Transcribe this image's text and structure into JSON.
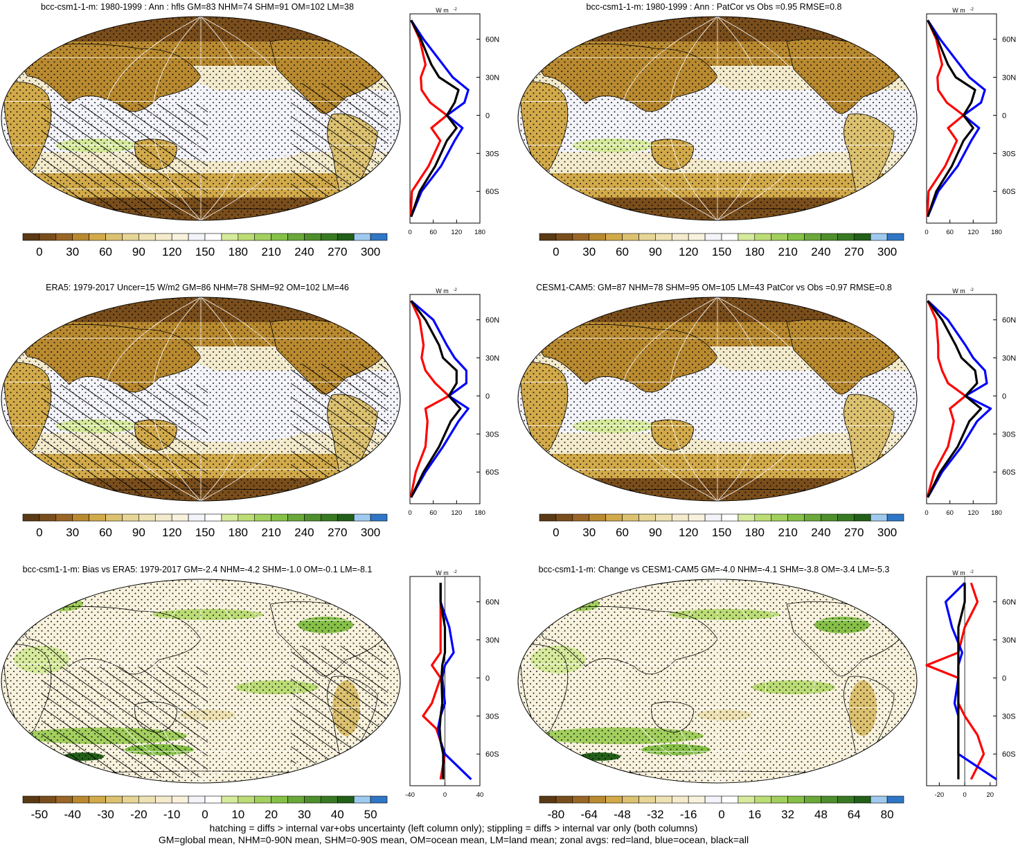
{
  "panels": [
    {
      "title": "bcc-csm1-1-m: 1980-1999 : Ann : hfls GM=83 NHM=74 SHM=91 OM=102 LM=38",
      "kind": "abs",
      "hatch": true,
      "colorbar": {
        "ticks": [
          "0",
          "30",
          "60",
          "90",
          "120",
          "150",
          "180",
          "210",
          "240",
          "270",
          "300"
        ]
      },
      "zonal": {
        "unit_label": "W m",
        "unit_exp": "-2",
        "xticks": [
          "0",
          "60",
          "120",
          "180"
        ],
        "xlim": [
          0,
          180
        ],
        "yticks": [
          "60N",
          "30N",
          "0",
          "30S",
          "60S"
        ]
      }
    },
    {
      "title": "bcc-csm1-1-m: 1980-1999 : Ann : PatCor vs Obs =0.95 RMSE=0.8",
      "kind": "abs",
      "hatch": false,
      "colorbar": {
        "ticks": [
          "0",
          "30",
          "60",
          "90",
          "120",
          "150",
          "180",
          "210",
          "240",
          "270",
          "300"
        ]
      },
      "zonal": {
        "unit_label": "W m",
        "unit_exp": "-2",
        "xticks": [
          "0",
          "60",
          "120",
          "180"
        ],
        "xlim": [
          0,
          180
        ],
        "yticks": [
          "60N",
          "30N",
          "0",
          "30S",
          "60S"
        ]
      }
    },
    {
      "title": "ERA5: 1979-2017 Uncer=15 W/m2 GM=86 NHM=78 SHM=92 OM=102 LM=46",
      "kind": "abs",
      "hatch": true,
      "colorbar": {
        "ticks": [
          "0",
          "30",
          "60",
          "90",
          "120",
          "150",
          "180",
          "210",
          "240",
          "270",
          "300"
        ]
      },
      "zonal": {
        "unit_label": "W m",
        "unit_exp": "-2",
        "xticks": [
          "0",
          "60",
          "120",
          "180"
        ],
        "xlim": [
          0,
          180
        ],
        "yticks": [
          "60N",
          "30N",
          "0",
          "30S",
          "60S"
        ]
      }
    },
    {
      "title": "CESM1-CAM5: GM=87 NHM=78 SHM=95 OM=105 LM=43 PatCor vs Obs =0.97 RMSE=0.8",
      "kind": "abs",
      "hatch": false,
      "colorbar": {
        "ticks": [
          "0",
          "30",
          "60",
          "90",
          "120",
          "150",
          "180",
          "210",
          "240",
          "270",
          "300"
        ]
      },
      "zonal": {
        "unit_label": "W m",
        "unit_exp": "-2",
        "xticks": [
          "0",
          "60",
          "120",
          "180"
        ],
        "xlim": [
          0,
          180
        ],
        "yticks": [
          "60N",
          "30N",
          "0",
          "30S",
          "60S"
        ]
      }
    },
    {
      "title": "bcc-csm1-1-m: Bias vs ERA5: 1979-2017 GM=-2.4 NHM=-4.2 SHM=-1.0 OM=-0.1 LM=-8.1",
      "kind": "diff",
      "hatch": true,
      "colorbar": {
        "ticks": [
          "-50",
          "-40",
          "-30",
          "-20",
          "-10",
          "0",
          "10",
          "20",
          "30",
          "40",
          "50"
        ]
      },
      "zonal": {
        "unit_label": "W m",
        "unit_exp": "-2",
        "xticks": [
          "-40",
          "0",
          "40"
        ],
        "xlim": [
          -40,
          40
        ],
        "yticks": [
          "60N",
          "30N",
          "0",
          "30S",
          "60S"
        ]
      }
    },
    {
      "title": "bcc-csm1-1-m: Change vs CESM1-CAM5 GM=-4.0 NHM=-4.1 SHM=-3.8 OM=-3.4 LM=-5.3",
      "kind": "diff",
      "hatch": false,
      "colorbar": {
        "ticks": [
          "-80",
          "-64",
          "-48",
          "-32",
          "-16",
          "0",
          "16",
          "32",
          "48",
          "64",
          "80"
        ]
      },
      "zonal": {
        "unit_label": "W m",
        "unit_exp": "-2",
        "xticks": [
          "-20",
          "0",
          "20"
        ],
        "xlim": [
          -30,
          25
        ],
        "yticks": [
          "60N",
          "30N",
          "0",
          "30S",
          "60S"
        ]
      }
    }
  ],
  "colors": {
    "abs_palette": [
      "#5a3a14",
      "#7a4e1c",
      "#9a6626",
      "#b98a30",
      "#d2aa4a",
      "#dcc170",
      "#e6d595",
      "#eee2b4",
      "#f4ebcd",
      "#f8f2dd",
      "#f3f3fa",
      "#ffffff",
      "#d6ea9c",
      "#bcdc76",
      "#a2cf5e",
      "#86c048",
      "#6aa83a",
      "#4e8e2c",
      "#387a22",
      "#235f18",
      "#9fcaf0",
      "#2f76c6"
    ],
    "diff_palette": [
      "#5a3a14",
      "#7a4e1c",
      "#9a6626",
      "#b98a30",
      "#d2aa4a",
      "#dcc170",
      "#e6d595",
      "#eee2b4",
      "#f4ebcd",
      "#f8f2dd",
      "#f3f3fa",
      "#ffffff",
      "#d6ea9c",
      "#bcdc76",
      "#a2cf5e",
      "#86c048",
      "#6aa83a",
      "#4e8e2c",
      "#387a22",
      "#235f18",
      "#9fcaf0",
      "#2f76c6"
    ],
    "land": "#ff0000",
    "ocean": "#0000ff",
    "all": "#000000"
  },
  "chart_data": [
    {
      "type": "line",
      "title": "bcc-csm1-1-m: 1980-1999 : Ann : hfls GM=83 NHM=74 SHM=91 OM=102 LM=38",
      "y": [
        -80,
        -60,
        -40,
        -20,
        -10,
        0,
        10,
        20,
        30,
        40,
        60,
        75
      ],
      "series": [
        {
          "values": [
            2,
            5,
            48,
            78,
            55,
            95,
            52,
            30,
            28,
            40,
            25,
            3
          ]
        },
        {
          "values": [
            3,
            30,
            80,
            115,
            135,
            95,
            140,
            150,
            110,
            85,
            35,
            3
          ]
        },
        {
          "values": [
            3,
            25,
            65,
            95,
            120,
            95,
            115,
            125,
            75,
            55,
            28,
            3
          ]
        }
      ],
      "xlim": [
        0,
        180
      ]
    },
    {
      "type": "line",
      "title": "bcc-csm1-1-m: 1980-1999 : Ann : PatCor vs Obs =0.95 RMSE=0.8",
      "y": [
        -80,
        -60,
        -40,
        -20,
        -10,
        0,
        10,
        20,
        30,
        40,
        60,
        75
      ],
      "series": [
        {
          "values": [
            2,
            5,
            48,
            78,
            55,
            95,
            52,
            30,
            28,
            40,
            25,
            3
          ]
        },
        {
          "values": [
            3,
            30,
            80,
            115,
            135,
            95,
            140,
            150,
            110,
            85,
            35,
            3
          ]
        },
        {
          "values": [
            3,
            25,
            65,
            95,
            120,
            95,
            115,
            125,
            75,
            55,
            28,
            3
          ]
        }
      ],
      "xlim": [
        0,
        180
      ]
    },
    {
      "type": "line",
      "title": "ERA5: 1979-2017 Uncer=15 W/m2 GM=86 NHM=78 SHM=92 OM=102 LM=46",
      "y": [
        -80,
        -60,
        -40,
        -20,
        -10,
        0,
        10,
        20,
        30,
        40,
        60,
        75
      ],
      "series": [
        {
          "values": [
            2,
            15,
            40,
            45,
            40,
            100,
            65,
            40,
            30,
            35,
            25,
            3
          ]
        },
        {
          "values": [
            3,
            40,
            85,
            125,
            150,
            100,
            145,
            145,
            115,
            95,
            60,
            3
          ]
        },
        {
          "values": [
            3,
            35,
            75,
            105,
            130,
            100,
            120,
            120,
            85,
            75,
            40,
            3
          ]
        }
      ],
      "xlim": [
        0,
        180
      ]
    },
    {
      "type": "line",
      "title": "CESM1-CAM5: GM=87 NHM=78 SHM=95 OM=105 LM=43 PatCor vs Obs =0.97 RMSE=0.8",
      "y": [
        -80,
        -60,
        -40,
        -20,
        -10,
        0,
        10,
        20,
        30,
        40,
        60,
        75
      ],
      "series": [
        {
          "values": [
            2,
            20,
            55,
            70,
            60,
            100,
            55,
            40,
            30,
            30,
            25,
            3
          ]
        },
        {
          "values": [
            3,
            40,
            90,
            130,
            165,
            100,
            155,
            150,
            120,
            100,
            55,
            3
          ]
        },
        {
          "values": [
            3,
            35,
            80,
            110,
            140,
            100,
            130,
            125,
            90,
            75,
            40,
            3
          ]
        }
      ],
      "xlim": [
        0,
        180
      ]
    },
    {
      "type": "line",
      "title": "bcc-csm1-1-m: Bias vs ERA5: 1979-2017 GM=-2.4 NHM=-4.2 SHM=-1.0 OM=-0.1 LM=-8.1",
      "y": [
        -80,
        -60,
        -50,
        -40,
        -30,
        -20,
        0,
        10,
        20,
        40,
        60,
        75
      ],
      "series": [
        {
          "values": [
            -5,
            0,
            -5,
            -10,
            -25,
            -15,
            -5,
            -15,
            -5,
            -5,
            -5,
            -5
          ]
        },
        {
          "values": [
            30,
            0,
            -5,
            -8,
            -5,
            0,
            -3,
            0,
            10,
            5,
            -5,
            -5
          ]
        },
        {
          "values": [
            -2,
            -2,
            -5,
            -6,
            -5,
            -3,
            -4,
            -3,
            0,
            0,
            -5,
            -5
          ]
        }
      ],
      "xlim": [
        -40,
        40
      ]
    },
    {
      "type": "line",
      "title": "bcc-csm1-1-m: Change vs CESM1-CAM5 GM=-4.0 NHM=-4.1 SHM=-3.8 OM=-3.4 LM=-5.3",
      "y": [
        -80,
        -60,
        -45,
        -30,
        -20,
        0,
        10,
        20,
        40,
        60,
        75
      ],
      "series": [
        {
          "values": [
            5,
            15,
            10,
            0,
            -5,
            -5,
            -30,
            -5,
            0,
            10,
            5
          ]
        },
        {
          "values": [
            25,
            -5,
            -5,
            -5,
            -8,
            -5,
            -5,
            -2,
            -10,
            -15,
            0
          ]
        },
        {
          "values": [
            -5,
            -5,
            -5,
            -5,
            -5,
            -5,
            -5,
            -5,
            -5,
            0,
            0
          ]
        }
      ],
      "xlim": [
        -30,
        25
      ]
    }
  ],
  "footnotes": {
    "line1": "hatching = diffs > internal var+obs uncertainty (left column only); stippling = diffs > internal var only (both columns)",
    "line2": "GM=global mean, NHM=0-90N mean, SHM=0-90S mean, OM=ocean mean, LM=land mean; zonal avgs: red=land, blue=ocean, black=all"
  }
}
